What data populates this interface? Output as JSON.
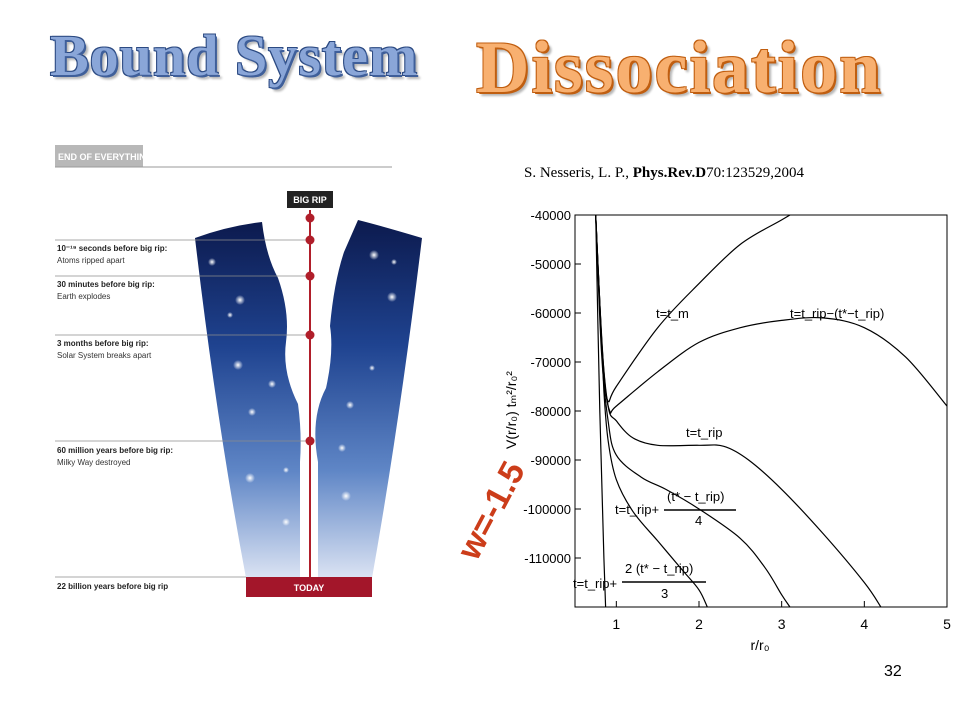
{
  "titles": {
    "bound": "Bound System",
    "dissociation": "Dissociation"
  },
  "citation": {
    "authors": "S. Nesseris,  L. P., ",
    "journal": "Phys.Rev.D",
    "ref": "70:123529,2004"
  },
  "w_label": "w=-1.5",
  "page_number": "32",
  "illustration": {
    "header": "END OF EVERYTHING",
    "big_rip": "BIG RIP",
    "today": "TODAY",
    "events": [
      {
        "title": "10⁻¹⁹ seconds before big rip:",
        "desc": "Atoms ripped apart"
      },
      {
        "title": "30 minutes before big rip:",
        "desc": "Earth explodes"
      },
      {
        "title": "3 months before big rip:",
        "desc": "Solar System breaks apart"
      },
      {
        "title": "60 million years before big rip:",
        "desc": "Milky Way destroyed"
      },
      {
        "title": "22 billion years before big rip",
        "desc": ""
      }
    ]
  },
  "chart_data": {
    "type": "line",
    "xlabel": "r/r₀",
    "ylabel": "V(r/r₀) tₘ²/r₀²",
    "xlim": [
      0.5,
      5
    ],
    "ylim": [
      -120000,
      -40000
    ],
    "x_ticks": [
      "1",
      "2",
      "3",
      "4",
      "5"
    ],
    "y_ticks": [
      "-40000",
      "-50000",
      "-60000",
      "-70000",
      "-80000",
      "-90000",
      "-100000",
      "-110000"
    ],
    "annotations": {
      "tm": "t=t_m",
      "trip_minus": "t=t_rip−(t*−t_rip)",
      "trip": "t=t_rip",
      "trip_plus4_left": "t=t_rip+",
      "trip_plus4_num": "(t* − t_rip)",
      "trip_plus4_den": "4",
      "trip_plus23_left": "t=t_rip+",
      "trip_plus23_num": "2 (t* − t_rip)",
      "trip_plus23_den": "3"
    },
    "series": [
      {
        "points": [
          [
            0.75,
            -40000
          ],
          [
            0.8,
            -58000
          ],
          [
            0.85,
            -72000
          ],
          [
            0.9,
            -78000
          ],
          [
            1.0,
            -75000
          ],
          [
            1.5,
            -63000
          ],
          [
            2.0,
            -54000
          ],
          [
            2.5,
            -46000
          ],
          [
            3.0,
            -41000
          ],
          [
            3.3,
            -38000
          ]
        ]
      },
      {
        "points": [
          [
            0.75,
            -40000
          ],
          [
            0.8,
            -58000
          ],
          [
            0.85,
            -73000
          ],
          [
            0.92,
            -80000
          ],
          [
            1.0,
            -79000
          ],
          [
            1.5,
            -72000
          ],
          [
            2.0,
            -66000
          ],
          [
            2.5,
            -63000
          ],
          [
            3.0,
            -61500
          ],
          [
            3.5,
            -61000
          ],
          [
            4.0,
            -63000
          ],
          [
            4.5,
            -69000
          ],
          [
            5.0,
            -79000
          ]
        ]
      },
      {
        "points": [
          [
            0.75,
            -40000
          ],
          [
            0.82,
            -65000
          ],
          [
            0.9,
            -79000
          ],
          [
            1.0,
            -82000
          ],
          [
            1.2,
            -85500
          ],
          [
            1.5,
            -87000
          ],
          [
            2.0,
            -87000
          ],
          [
            2.3,
            -87200
          ],
          [
            2.6,
            -90000
          ],
          [
            3.0,
            -96000
          ],
          [
            3.5,
            -105000
          ],
          [
            4.0,
            -115000
          ],
          [
            4.2,
            -120000
          ]
        ]
      },
      {
        "points": [
          [
            0.75,
            -40000
          ],
          [
            0.82,
            -68000
          ],
          [
            0.9,
            -82000
          ],
          [
            1.0,
            -89000
          ],
          [
            1.3,
            -93500
          ],
          [
            1.6,
            -96000
          ],
          [
            2.0,
            -100000
          ],
          [
            2.5,
            -106000
          ],
          [
            2.8,
            -112000
          ],
          [
            3.0,
            -117500
          ],
          [
            3.1,
            -120000
          ]
        ]
      },
      {
        "points": [
          [
            0.75,
            -40000
          ],
          [
            0.8,
            -58000
          ],
          [
            0.85,
            -76000
          ],
          [
            0.9,
            -86000
          ],
          [
            1.0,
            -94000
          ],
          [
            1.2,
            -100500
          ],
          [
            1.5,
            -106500
          ],
          [
            1.8,
            -112500
          ],
          [
            2.0,
            -116500
          ],
          [
            2.1,
            -120000
          ]
        ]
      },
      {
        "points": [
          [
            0.75,
            -40000
          ],
          [
            0.8,
            -80000
          ],
          [
            0.85,
            -110000
          ],
          [
            0.87,
            -120000
          ]
        ]
      }
    ]
  }
}
